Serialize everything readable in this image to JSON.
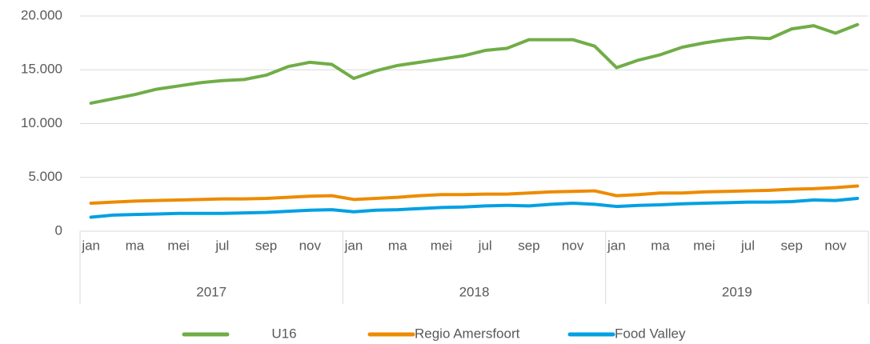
{
  "chart_data": {
    "type": "line",
    "categories": [
      "jan",
      null,
      "ma",
      null,
      "mei",
      null,
      "jul",
      null,
      "sep",
      null,
      "nov",
      null,
      "jan",
      null,
      "ma",
      null,
      "mei",
      null,
      "jul",
      null,
      "sep",
      null,
      "nov",
      null,
      "jan",
      null,
      "ma",
      null,
      "mei",
      null,
      "jul",
      null,
      "sep",
      null,
      "nov",
      null
    ],
    "year_groups": [
      "2017",
      "2018",
      "2019"
    ],
    "series": [
      {
        "name": "U16",
        "color": "#70ad47",
        "values": [
          11900,
          12300,
          12700,
          13200,
          13500,
          13800,
          14000,
          14100,
          14500,
          15300,
          15700,
          15500,
          14200,
          14900,
          15400,
          15700,
          16000,
          16300,
          16800,
          17000,
          17800,
          17800,
          17800,
          17200,
          15200,
          15900,
          16400,
          17100,
          17500,
          17800,
          18000,
          17900,
          18800,
          19100,
          18400,
          19200
        ]
      },
      {
        "name": "Regio Amersfoort",
        "color": "#ed8b00",
        "values": [
          2600,
          2700,
          2800,
          2850,
          2900,
          2950,
          3000,
          3000,
          3050,
          3150,
          3250,
          3300,
          2950,
          3050,
          3150,
          3300,
          3400,
          3400,
          3450,
          3450,
          3550,
          3650,
          3700,
          3750,
          3300,
          3400,
          3550,
          3550,
          3650,
          3700,
          3750,
          3800,
          3900,
          3950,
          4050,
          4200
        ]
      },
      {
        "name": "Food Valley",
        "color": "#00a0e3",
        "values": [
          1300,
          1500,
          1550,
          1600,
          1650,
          1650,
          1650,
          1700,
          1750,
          1850,
          1950,
          2000,
          1800,
          1950,
          2000,
          2100,
          2200,
          2250,
          2350,
          2400,
          2350,
          2500,
          2600,
          2500,
          2300,
          2400,
          2450,
          2550,
          2600,
          2650,
          2700,
          2700,
          2750,
          2900,
          2850,
          3050
        ]
      }
    ],
    "ylim": [
      0,
      20000
    ],
    "yticks": [
      0,
      {
        "value": 5000,
        "label": "5.000"
      },
      {
        "value": 10000,
        "label": "10.000"
      },
      {
        "value": 15000,
        "label": "15.000"
      },
      {
        "value": 20000,
        "label": "20.000"
      }
    ],
    "grid": true,
    "legend": "bottom"
  }
}
